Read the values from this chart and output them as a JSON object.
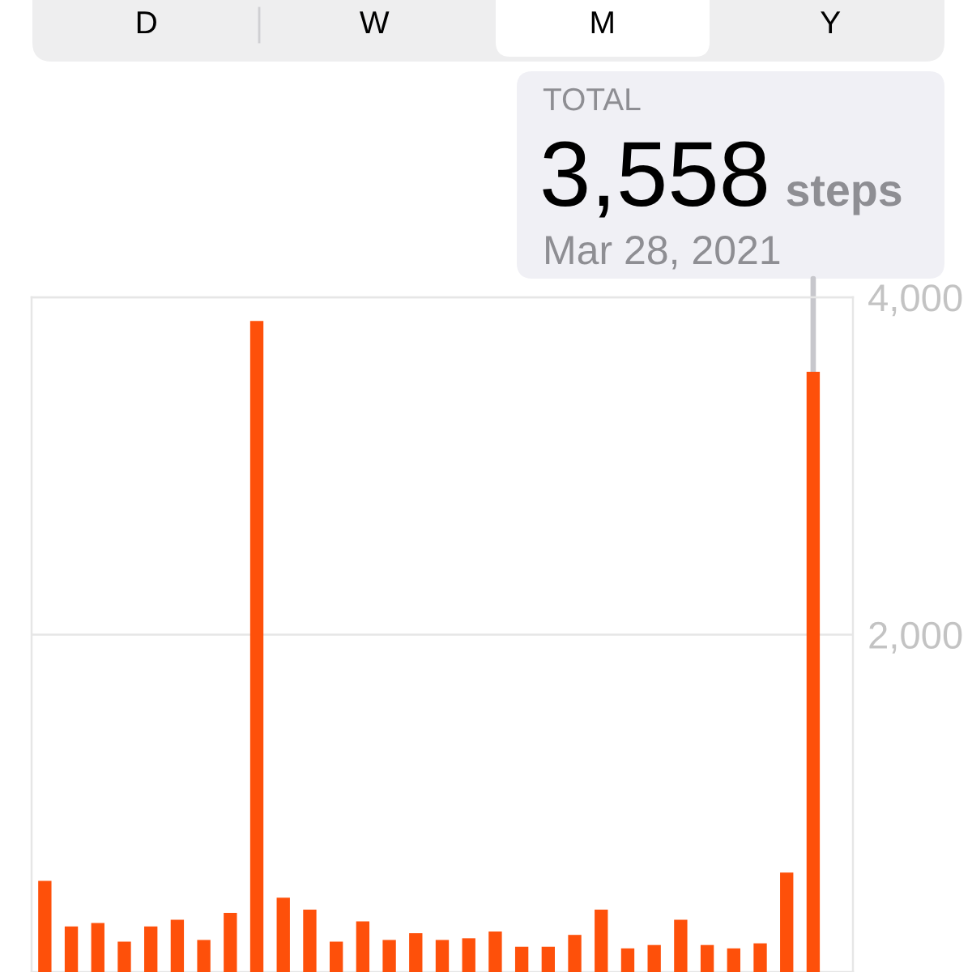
{
  "chart_data": {
    "type": "bar",
    "categories": [
      null,
      null,
      null,
      null,
      null,
      null,
      null,
      null,
      null,
      null,
      null,
      null,
      null,
      null,
      null,
      null,
      null,
      null,
      null,
      null,
      null,
      null,
      null,
      null,
      null,
      null,
      null,
      null,
      null,
      null,
      null
    ],
    "values": [
      540,
      270,
      290,
      180,
      270,
      310,
      190,
      350,
      3860,
      440,
      370,
      180,
      300,
      190,
      230,
      190,
      200,
      240,
      150,
      150,
      220,
      370,
      140,
      160,
      310,
      160,
      140,
      170,
      590,
      3558,
      null
    ],
    "color": "#fe500a",
    "ylim": [
      0,
      4000
    ],
    "yticks": [
      {
        "value": 2000,
        "label": "2,000"
      },
      {
        "value": 4000,
        "label": "4,000"
      }
    ],
    "tick_labels": "y",
    "grid": "y",
    "annotations": [
      "D",
      "W",
      "M",
      "Y",
      "TOTAL",
      "3,558",
      "steps",
      "Mar 28, 2021"
    ]
  }
}
